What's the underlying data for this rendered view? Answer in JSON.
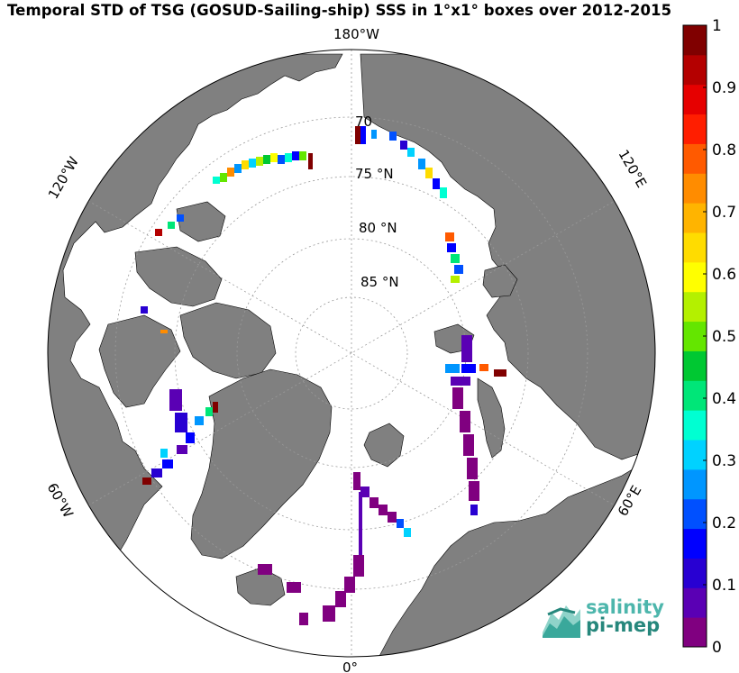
{
  "title": "Temporal STD of TSG (GOSUD-Sailing-ship) SSS in 1°x1° boxes over 2012-2015",
  "map": {
    "projection": "north polar stereographic",
    "latitude_labels": [
      "70",
      "75 °N",
      "80 °N",
      "85 °N"
    ],
    "longitude_labels": {
      "top": "180°W",
      "left_upper": "120°W",
      "left_lower": "60°W",
      "bottom": "0°",
      "right_lower": "60°E",
      "right_upper": "120°E"
    },
    "land_color": "#808080",
    "ocean_color": "#ffffff",
    "grid": true
  },
  "colorbar": {
    "min": 0,
    "max": 1,
    "tick_labels": [
      "1",
      "0.9",
      "0.8",
      "0.7",
      "0.6",
      "0.5",
      "0.4",
      "0.3",
      "0.2",
      "0.1",
      "0"
    ],
    "colors": [
      "#800080",
      "#5a00b4",
      "#2800d2",
      "#0000ff",
      "#0050ff",
      "#0096ff",
      "#00d2ff",
      "#00ffd2",
      "#00e678",
      "#00c832",
      "#64e600",
      "#b4f000",
      "#ffff00",
      "#ffdc00",
      "#ffb400",
      "#ff8c00",
      "#ff5a00",
      "#ff1e00",
      "#e60000",
      "#b40000",
      "#800000"
    ]
  },
  "logo": {
    "line1": "salinity",
    "line2": "pi-mep"
  }
}
